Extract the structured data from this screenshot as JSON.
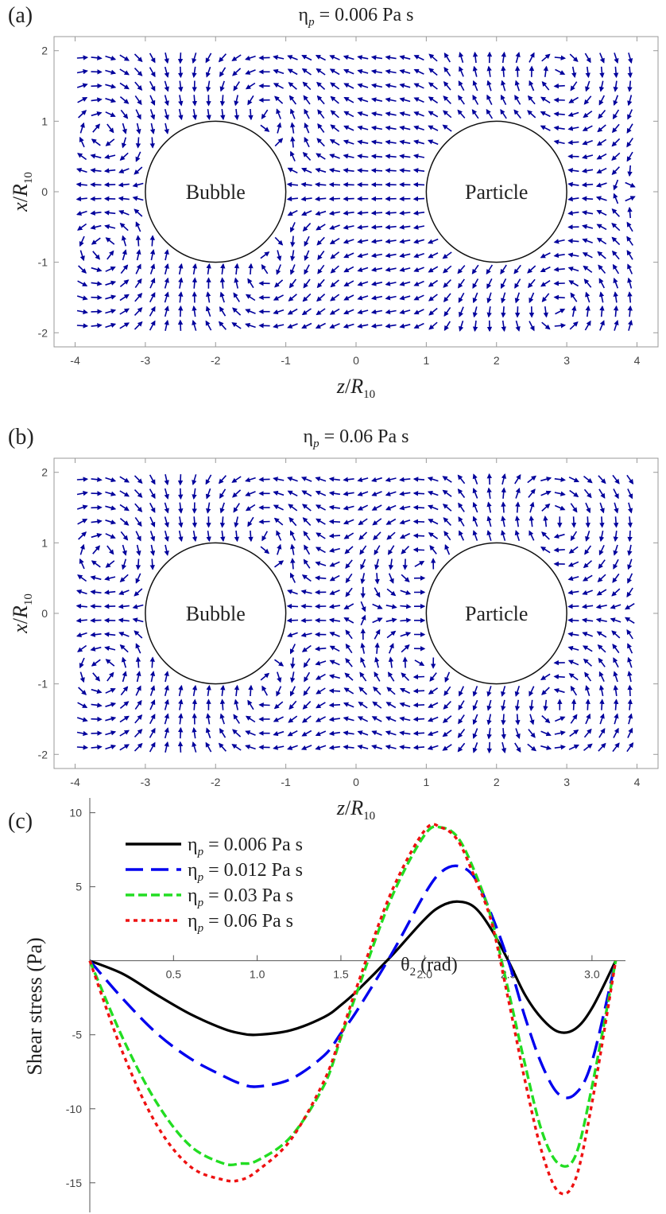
{
  "chart_data": [
    {
      "type": "vector-field",
      "panel_label": "(a)",
      "title": "ηp = 0.006 Pa s",
      "title_parts": {
        "sym": "η",
        "sub": "p",
        "rest": " = 0.006 Pa s"
      },
      "xlabel": "z/R10",
      "xlabel_parts": {
        "a": "z",
        "b": "/",
        "c": "R",
        "sub": "10"
      },
      "ylabel": "x/R10",
      "ylabel_parts": {
        "a": "x",
        "b": "/",
        "c": "R",
        "sub": "10"
      },
      "xlim": [
        -4.3,
        4.3
      ],
      "ylim": [
        -2.2,
        2.2
      ],
      "xticks": [
        -4,
        -3,
        -2,
        -1,
        0,
        1,
        2,
        3,
        4
      ],
      "yticks": [
        -2,
        -1,
        0,
        1,
        2
      ],
      "arrow_color": "#00009c",
      "bodies": [
        {
          "label": "Bubble",
          "center": [
            -2,
            0
          ],
          "radius": 1
        },
        {
          "label": "Particle",
          "center": [
            2,
            0
          ],
          "radius": 1
        }
      ],
      "vortices": [
        {
          "center": [
            -1.5,
            1.3
          ],
          "sense": 1
        },
        {
          "center": [
            -1.5,
            -1.3
          ],
          "sense": -1
        },
        {
          "center": [
            -3.5,
            0.9
          ],
          "sense": -1
        },
        {
          "center": [
            -3.5,
            -0.9
          ],
          "sense": 1
        },
        {
          "center": [
            2.8,
            1.65
          ],
          "sense": -1
        },
        {
          "center": [
            2.8,
            -1.65
          ],
          "sense": 1
        }
      ]
    },
    {
      "type": "vector-field",
      "panel_label": "(b)",
      "title": "ηp = 0.06 Pa s",
      "title_parts": {
        "sym": "η",
        "sub": "p",
        "rest": " = 0.06 Pa s"
      },
      "xlabel": "z/R10",
      "xlabel_parts": {
        "a": "z",
        "b": "/",
        "c": "R",
        "sub": "10"
      },
      "ylabel": "x/R10",
      "ylabel_parts": {
        "a": "x",
        "b": "/",
        "c": "R",
        "sub": "10"
      },
      "xlim": [
        -4.3,
        4.3
      ],
      "ylim": [
        -2.2,
        2.2
      ],
      "xticks": [
        -4,
        -3,
        -2,
        -1,
        0,
        1,
        2,
        3,
        4
      ],
      "yticks": [
        -2,
        -1,
        0,
        1,
        2
      ],
      "arrow_color": "#00009c",
      "bodies": [
        {
          "label": "Bubble",
          "center": [
            -2,
            0
          ],
          "radius": 1
        },
        {
          "label": "Particle",
          "center": [
            2,
            0
          ],
          "radius": 1
        }
      ],
      "vortices": [
        {
          "center": [
            -1.5,
            1.3
          ],
          "sense": 1
        },
        {
          "center": [
            -1.5,
            -1.3
          ],
          "sense": -1
        },
        {
          "center": [
            -3.5,
            0.9
          ],
          "sense": -1
        },
        {
          "center": [
            -3.5,
            -0.9
          ],
          "sense": 1
        },
        {
          "center": [
            1.0,
            0.9
          ],
          "sense": 1
        },
        {
          "center": [
            1.0,
            -0.9
          ],
          "sense": -1
        },
        {
          "center": [
            2.7,
            1.3
          ],
          "sense": -1
        },
        {
          "center": [
            2.7,
            -1.3
          ],
          "sense": 1
        }
      ]
    },
    {
      "type": "line",
      "panel_label": "(c)",
      "xlabel": "θ2 (rad)",
      "xlabel_parts": {
        "sym": "θ",
        "sub": "2",
        "rest": " (rad)"
      },
      "ylabel": "Shear stress (Pa)",
      "xlim": [
        0,
        3.2
      ],
      "ylim": [
        -17,
        11
      ],
      "xticks": [
        0.5,
        1.0,
        1.5,
        2.0,
        2.5,
        3.0
      ],
      "xtick_labels": [
        "0.5",
        "1.0",
        "1.5",
        "2.0",
        "2.5",
        "3.0"
      ],
      "yticks": [
        -15,
        -10,
        -5,
        5,
        10
      ],
      "x": [
        0,
        0.2,
        0.4,
        0.6,
        0.8,
        0.9,
        1.0,
        1.2,
        1.4,
        1.5,
        1.6,
        1.8,
        2.0,
        2.1,
        2.2,
        2.3,
        2.4,
        2.5,
        2.6,
        2.7,
        2.8,
        2.9,
        3.0,
        3.1416
      ],
      "series": [
        {
          "name": "ηp = 0.006 Pa s",
          "name_parts": {
            "sym": "η",
            "sub": "p",
            "rest": " = 0.006 Pa s"
          },
          "color": "#000000",
          "dash": "solid",
          "values": [
            0,
            -0.9,
            -2.3,
            -3.6,
            -4.6,
            -4.9,
            -5.0,
            -4.7,
            -3.8,
            -3.0,
            -2.0,
            0.3,
            2.8,
            3.7,
            4.0,
            3.6,
            2.1,
            0.0,
            -2.3,
            -3.9,
            -4.8,
            -4.6,
            -3.2,
            0
          ]
        },
        {
          "name": "ηp = 0.012 Pa s",
          "name_parts": {
            "sym": "η",
            "sub": "p",
            "rest": " = 0.012 Pa s"
          },
          "color": "#0000ee",
          "dash": "long",
          "values": [
            0,
            -2.6,
            -4.9,
            -6.6,
            -7.8,
            -8.3,
            -8.5,
            -8.0,
            -6.4,
            -4.9,
            -3.3,
            0.4,
            4.5,
            6.0,
            6.4,
            5.6,
            3.1,
            0.0,
            -3.8,
            -7.0,
            -9.0,
            -9.0,
            -6.8,
            0
          ]
        },
        {
          "name": "ηp = 0.03 Pa s",
          "name_parts": {
            "sym": "η",
            "sub": "p",
            "rest": " = 0.03 Pa s"
          },
          "color": "#22dd22",
          "dash": "medium",
          "values": [
            0,
            -5.3,
            -9.6,
            -12.5,
            -13.7,
            -13.7,
            -13.5,
            -11.9,
            -8.4,
            -5.2,
            -2.0,
            4.2,
            8.5,
            9.0,
            8.3,
            6.0,
            2.8,
            -2.0,
            -7.0,
            -11.5,
            -13.7,
            -13.2,
            -8.5,
            0
          ]
        },
        {
          "name": "ηp = 0.06 Pa s",
          "name_parts": {
            "sym": "η",
            "sub": "p",
            "rest": " = 0.06 Pa s"
          },
          "color": "#ee1111",
          "dash": "short",
          "values": [
            0,
            -6.3,
            -11.1,
            -13.9,
            -14.8,
            -14.8,
            -14.2,
            -12.1,
            -8.1,
            -5.0,
            -1.6,
            4.6,
            8.8,
            9.0,
            8.1,
            5.6,
            2.6,
            -2.6,
            -8.1,
            -12.9,
            -15.6,
            -14.8,
            -9.6,
            0
          ]
        }
      ]
    }
  ]
}
